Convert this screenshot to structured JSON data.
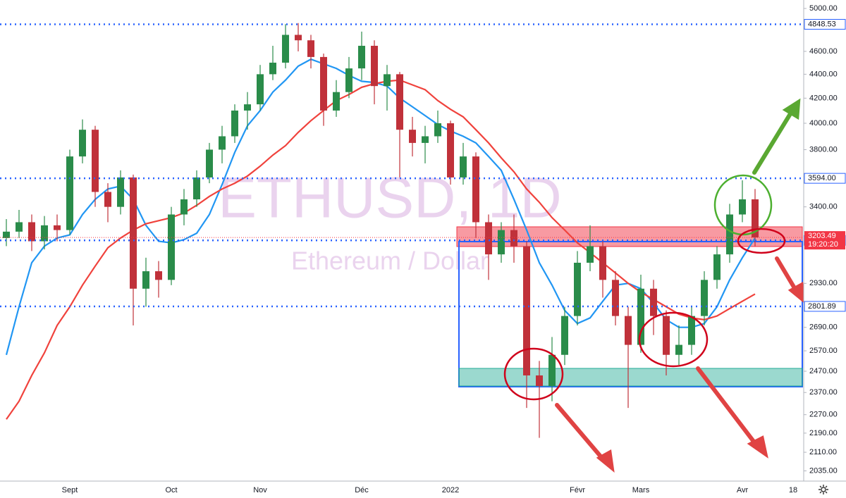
{
  "chart_data": {
    "type": "candlestick",
    "title": "ETHUSD, 1D",
    "subtitle": "Ethereum / Dollar",
    "categories": [
      null,
      null,
      null,
      null,
      null,
      "Sept",
      null,
      null,
      null,
      null,
      null,
      null,
      null,
      "Oct",
      null,
      null,
      null,
      null,
      null,
      null,
      "Nov",
      null,
      null,
      null,
      null,
      null,
      null,
      null,
      "Déc",
      null,
      null,
      null,
      null,
      null,
      null,
      "2022",
      null,
      null,
      null,
      null,
      null,
      null,
      null,
      null,
      null,
      "Févr",
      null,
      null,
      null,
      null,
      "Mars",
      null,
      null,
      null,
      null,
      null,
      null,
      null,
      "Avr",
      null,
      null,
      null,
      "18"
    ],
    "open": [
      3200,
      3240,
      3300,
      3180,
      3280,
      3250,
      3750,
      3950,
      3500,
      3400,
      3600,
      2900,
      3000,
      2950,
      3350,
      3450,
      3600,
      3800,
      3900,
      4100,
      4150,
      4400,
      4500,
      4750,
      4700,
      4550,
      4100,
      4250,
      4450,
      4650,
      4300,
      4400,
      3950,
      3850,
      3900,
      4000,
      3600,
      3750,
      3300,
      3100,
      3250,
      3150,
      2450,
      2400,
      2550,
      2750,
      3050,
      3150,
      2950,
      2750,
      2600,
      2900,
      2750,
      2550,
      2600,
      2750,
      2950,
      3100,
      3350,
      3450,
      null,
      null,
      null
    ],
    "high": [
      3320,
      3380,
      3350,
      3340,
      3350,
      3800,
      4030,
      3980,
      3560,
      3650,
      3620,
      3080,
      3060,
      3400,
      3520,
      3650,
      3850,
      3980,
      4150,
      4250,
      4480,
      4650,
      4850,
      4860,
      4750,
      4580,
      4350,
      4550,
      4780,
      4700,
      4480,
      4420,
      4050,
      3980,
      4100,
      4020,
      3850,
      3780,
      3350,
      3300,
      3350,
      3180,
      2520,
      2640,
      2800,
      3120,
      3280,
      3180,
      3000,
      2800,
      2980,
      2950,
      2780,
      2700,
      2800,
      3000,
      3150,
      3420,
      3580,
      3520,
      null,
      null,
      null
    ],
    "low": [
      3150,
      3200,
      3120,
      3130,
      3180,
      3220,
      3700,
      3400,
      3300,
      3350,
      2700,
      2800,
      2850,
      2920,
      3280,
      3400,
      3560,
      3700,
      3850,
      3950,
      4100,
      4350,
      4450,
      4600,
      4450,
      3980,
      4050,
      4200,
      4350,
      4150,
      4100,
      3600,
      3750,
      3700,
      3850,
      3550,
      3550,
      3200,
      2950,
      3050,
      3050,
      2300,
      2170,
      2330,
      2500,
      2700,
      3000,
      2850,
      2700,
      2300,
      2560,
      2650,
      2450,
      2500,
      2550,
      2700,
      2900,
      3050,
      3300,
      3150,
      null,
      null,
      null
    ],
    "close": [
      3240,
      3300,
      3180,
      3280,
      3250,
      3750,
      3950,
      3500,
      3400,
      3600,
      2900,
      3000,
      2950,
      3350,
      3450,
      3600,
      3800,
      3900,
      4100,
      4150,
      4400,
      4500,
      4750,
      4700,
      4550,
      4100,
      4250,
      4450,
      4650,
      4300,
      4400,
      3950,
      3850,
      3900,
      4000,
      3600,
      3750,
      3300,
      3100,
      3250,
      3150,
      2450,
      2400,
      2550,
      2750,
      3050,
      3150,
      2950,
      2750,
      2600,
      2900,
      2750,
      2550,
      2600,
      2750,
      2950,
      3100,
      3350,
      3450,
      3203.49,
      null,
      null,
      null
    ],
    "up_color": "#2a8c4a",
    "down_color": "#c0313a",
    "lines": [
      {
        "color": "#2196f3",
        "values": [
          2550,
          2800,
          3050,
          3150,
          3200,
          3220,
          3350,
          3450,
          3520,
          3540,
          3450,
          3280,
          3180,
          3170,
          3190,
          3230,
          3350,
          3550,
          3780,
          3980,
          4100,
          4250,
          4350,
          4470,
          4530,
          4490,
          4450,
          4390,
          4340,
          4330,
          4300,
          4200,
          4130,
          4060,
          3990,
          3940,
          3900,
          3850,
          3750,
          3650,
          3450,
          3250,
          3050,
          2920,
          2780,
          2710,
          2740,
          2830,
          2920,
          2930,
          2900,
          2820,
          2730,
          2690,
          2690,
          2710,
          2800,
          2950,
          3080,
          3200,
          null,
          null,
          null
        ]
      },
      {
        "color": "#f0423c",
        "values": [
          2250,
          2330,
          2450,
          2560,
          2700,
          2800,
          2920,
          3030,
          3140,
          3200,
          3250,
          3290,
          3310,
          3330,
          3360,
          3410,
          3470,
          3520,
          3560,
          3610,
          3680,
          3760,
          3830,
          3930,
          4020,
          4100,
          4180,
          4230,
          4290,
          4320,
          4340,
          4350,
          4310,
          4270,
          4180,
          4110,
          4050,
          3950,
          3850,
          3740,
          3640,
          3520,
          3430,
          3330,
          3250,
          3170,
          3110,
          3050,
          2990,
          2930,
          2880,
          2840,
          2800,
          2760,
          2740,
          2730,
          2750,
          2790,
          2830,
          2870,
          null,
          null,
          null
        ]
      }
    ],
    "log": true,
    "ylim": [
      1995,
      5083
    ],
    "yticks": [
      {
        "value": 5000,
        "label": "5000.00"
      },
      {
        "value": 4600,
        "label": "4600.00"
      },
      {
        "value": 4400,
        "label": "4400.00"
      },
      {
        "value": 4200,
        "label": "4200.00"
      },
      {
        "value": 4000,
        "label": "4000.00"
      },
      {
        "value": 3800,
        "label": "3800.00"
      },
      {
        "value": 3400,
        "label": "3400.00"
      },
      {
        "value": 2930,
        "label": "2930.00"
      },
      {
        "value": 2690,
        "label": "2690.00"
      },
      {
        "value": 2570,
        "label": "2570.00"
      },
      {
        "value": 2470,
        "label": "2470.00"
      },
      {
        "value": 2370,
        "label": "2370.00"
      },
      {
        "value": 2270,
        "label": "2270.00"
      },
      {
        "value": 2190,
        "label": "2190.00"
      },
      {
        "value": 2110,
        "label": "2110.00"
      },
      {
        "value": 2035,
        "label": "2035.00"
      }
    ],
    "price_lines": [
      4848.53,
      {
        "value": 3594,
        "label": "3594.00"
      },
      3185.55,
      2801.89
    ],
    "line_color": "#2962ff",
    "last_price": {
      "value": 3203.49,
      "countdown": "19:20:20",
      "color": "#f23645"
    }
  }
}
